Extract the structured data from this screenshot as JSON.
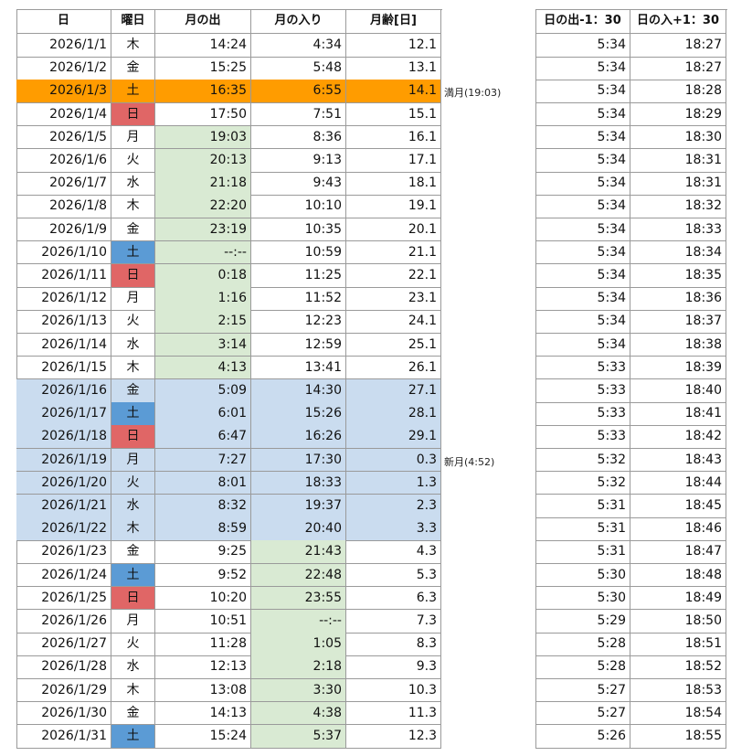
{
  "moon_table": {
    "headers": [
      "日",
      "曜日",
      "月の出",
      "月の入り",
      "月齢[日]"
    ],
    "rows": [
      [
        "2026/1/1",
        "木",
        "14:24",
        "4:34",
        "12.1"
      ],
      [
        "2026/1/2",
        "金",
        "15:25",
        "5:48",
        "13.1"
      ],
      [
        "2026/1/3",
        "土",
        "16:35",
        "6:55",
        "14.1"
      ],
      [
        "2026/1/4",
        "日",
        "17:50",
        "7:51",
        "15.1"
      ],
      [
        "2026/1/5",
        "月",
        "19:03",
        "8:36",
        "16.1"
      ],
      [
        "2026/1/6",
        "火",
        "20:13",
        "9:13",
        "17.1"
      ],
      [
        "2026/1/7",
        "水",
        "21:18",
        "9:43",
        "18.1"
      ],
      [
        "2026/1/8",
        "木",
        "22:20",
        "10:10",
        "19.1"
      ],
      [
        "2026/1/9",
        "金",
        "23:19",
        "10:35",
        "20.1"
      ],
      [
        "2026/1/10",
        "土",
        "--:--",
        "10:59",
        "21.1"
      ],
      [
        "2026/1/11",
        "日",
        "0:18",
        "11:25",
        "22.1"
      ],
      [
        "2026/1/12",
        "月",
        "1:16",
        "11:52",
        "23.1"
      ],
      [
        "2026/1/13",
        "火",
        "2:15",
        "12:23",
        "24.1"
      ],
      [
        "2026/1/14",
        "水",
        "3:14",
        "12:59",
        "25.1"
      ],
      [
        "2026/1/15",
        "木",
        "4:13",
        "13:41",
        "26.1"
      ],
      [
        "2026/1/16",
        "金",
        "5:09",
        "14:30",
        "27.1"
      ],
      [
        "2026/1/17",
        "土",
        "6:01",
        "15:26",
        "28.1"
      ],
      [
        "2026/1/18",
        "日",
        "6:47",
        "16:26",
        "29.1"
      ],
      [
        "2026/1/19",
        "月",
        "7:27",
        "17:30",
        "0.3"
      ],
      [
        "2026/1/20",
        "火",
        "8:01",
        "18:33",
        "1.3"
      ],
      [
        "2026/1/21",
        "水",
        "8:32",
        "19:37",
        "2.3"
      ],
      [
        "2026/1/22",
        "木",
        "8:59",
        "20:40",
        "3.3"
      ],
      [
        "2026/1/23",
        "金",
        "9:25",
        "21:43",
        "4.3"
      ],
      [
        "2026/1/24",
        "土",
        "9:52",
        "22:48",
        "5.3"
      ],
      [
        "2026/1/25",
        "日",
        "10:20",
        "23:55",
        "6.3"
      ],
      [
        "2026/1/26",
        "月",
        "10:51",
        "--:--",
        "7.3"
      ],
      [
        "2026/1/27",
        "火",
        "11:28",
        "1:05",
        "8.3"
      ],
      [
        "2026/1/28",
        "水",
        "12:13",
        "2:18",
        "9.3"
      ],
      [
        "2026/1/29",
        "木",
        "13:08",
        "3:30",
        "10.3"
      ],
      [
        "2026/1/30",
        "金",
        "14:13",
        "4:38",
        "11.3"
      ],
      [
        "2026/1/31",
        "土",
        "15:24",
        "5:37",
        "12.3"
      ]
    ]
  },
  "annotations": {
    "full_moon": "満月(19:03)",
    "new_moon": "新月(4:52)"
  },
  "sun_table": {
    "headers": [
      "日の出-1：30",
      "日の入+1：30"
    ],
    "rows": [
      [
        "5:34",
        "18:27"
      ],
      [
        "5:34",
        "18:27"
      ],
      [
        "5:34",
        "18:28"
      ],
      [
        "5:34",
        "18:29"
      ],
      [
        "5:34",
        "18:30"
      ],
      [
        "5:34",
        "18:31"
      ],
      [
        "5:34",
        "18:31"
      ],
      [
        "5:34",
        "18:32"
      ],
      [
        "5:34",
        "18:33"
      ],
      [
        "5:34",
        "18:34"
      ],
      [
        "5:34",
        "18:35"
      ],
      [
        "5:34",
        "18:36"
      ],
      [
        "5:34",
        "18:37"
      ],
      [
        "5:34",
        "18:38"
      ],
      [
        "5:33",
        "18:39"
      ],
      [
        "5:33",
        "18:40"
      ],
      [
        "5:33",
        "18:41"
      ],
      [
        "5:33",
        "18:42"
      ],
      [
        "5:32",
        "18:43"
      ],
      [
        "5:32",
        "18:44"
      ],
      [
        "5:31",
        "18:45"
      ],
      [
        "5:31",
        "18:46"
      ],
      [
        "5:31",
        "18:47"
      ],
      [
        "5:30",
        "18:48"
      ],
      [
        "5:30",
        "18:49"
      ],
      [
        "5:29",
        "18:50"
      ],
      [
        "5:28",
        "18:51"
      ],
      [
        "5:28",
        "18:52"
      ],
      [
        "5:27",
        "18:53"
      ],
      [
        "5:27",
        "18:54"
      ],
      [
        "5:26",
        "18:55"
      ]
    ]
  }
}
